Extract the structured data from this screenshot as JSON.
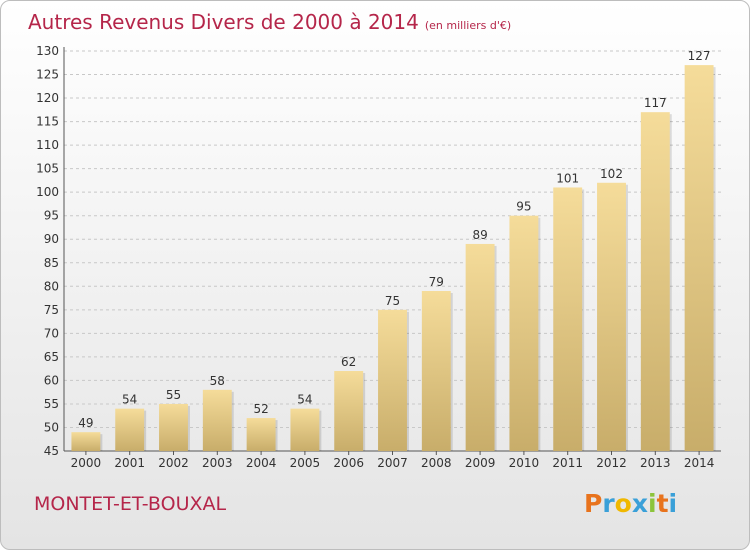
{
  "title": {
    "main": "Autres Revenus Divers de 2000 à 2014",
    "unit": "(en milliers d'€)"
  },
  "place": "MONTET-ET-BOUXAL",
  "logo": {
    "letters": [
      "P",
      "r",
      "o",
      "x",
      "i",
      "t",
      "i"
    ],
    "colors": [
      "#e8731d",
      "#3aa0d8",
      "#f0b800",
      "#3aa0d8",
      "#8cc43b",
      "#e8731d",
      "#3aa0d8"
    ]
  },
  "colors": {
    "title": "#b5264a",
    "bar_light": "#f5dc9a",
    "bar_dark": "#c8ad6a",
    "grid": "#c8c8c8"
  },
  "chart_data": {
    "type": "bar",
    "categories": [
      "2000",
      "2001",
      "2002",
      "2003",
      "2004",
      "2005",
      "2006",
      "2007",
      "2008",
      "2009",
      "2010",
      "2011",
      "2012",
      "2013",
      "2014"
    ],
    "values": [
      49,
      54,
      55,
      58,
      52,
      54,
      62,
      75,
      79,
      89,
      95,
      101,
      102,
      117,
      127
    ],
    "data_labels": [
      "49",
      "54",
      "55",
      "58",
      "52",
      "54",
      "62",
      "75",
      "79",
      "89",
      "95",
      "101",
      "102",
      "117",
      "127"
    ],
    "yticks": [
      "45",
      "50",
      "55",
      "60",
      "65",
      "70",
      "75",
      "80",
      "85",
      "90",
      "95",
      "100",
      "105",
      "110",
      "115",
      "120",
      "125",
      "130"
    ],
    "ylim": [
      45,
      130
    ],
    "grid": "horizontal dashed",
    "legend": "none"
  }
}
